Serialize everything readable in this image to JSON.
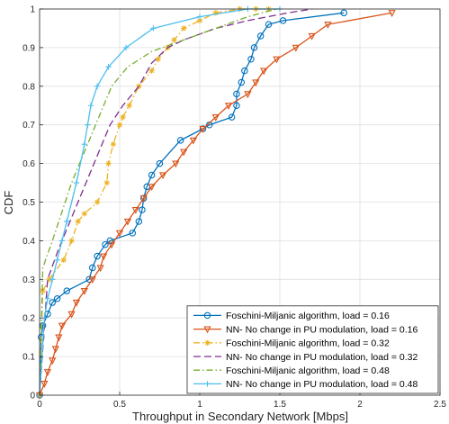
{
  "chart_data": {
    "type": "line",
    "xlabel": "Throughput in Secondary Network [Mbps]",
    "ylabel": "CDF",
    "xlim": [
      0,
      2.5
    ],
    "ylim": [
      0,
      1
    ],
    "xticks": [
      "0",
      "0.5",
      "1",
      "1.5",
      "2",
      "2.5"
    ],
    "yticks": [
      "0",
      "0.1",
      "0.2",
      "0.3",
      "0.4",
      "0.5",
      "0.6",
      "0.7",
      "0.8",
      "0.9",
      "1"
    ],
    "grid": true,
    "legend_position": "bottom-right",
    "series": [
      {
        "name": "Foschini-Miljanic algorithm, load = 0.16",
        "color": "#0072BD",
        "dash": "solid",
        "marker": "circle",
        "x": [
          0.0,
          0.01,
          0.02,
          0.05,
          0.08,
          0.11,
          0.17,
          0.31,
          0.33,
          0.36,
          0.41,
          0.44,
          0.58,
          0.62,
          0.64,
          0.65,
          0.67,
          0.7,
          0.75,
          0.88,
          1.02,
          1.06,
          1.2,
          1.23,
          1.23,
          1.26,
          1.28,
          1.32,
          1.34,
          1.38,
          1.43,
          1.52,
          1.9
        ],
        "y": [
          0.0,
          0.15,
          0.18,
          0.21,
          0.24,
          0.25,
          0.27,
          0.3,
          0.33,
          0.36,
          0.39,
          0.4,
          0.42,
          0.45,
          0.48,
          0.51,
          0.54,
          0.57,
          0.6,
          0.66,
          0.69,
          0.7,
          0.72,
          0.75,
          0.78,
          0.81,
          0.84,
          0.87,
          0.9,
          0.93,
          0.96,
          0.97,
          0.99
        ]
      },
      {
        "name": "NN- No change in PU modulation, load = 0.16",
        "color": "#D95319",
        "dash": "solid",
        "marker": "triangle-down",
        "x": [
          0.0,
          0.03,
          0.05,
          0.08,
          0.1,
          0.12,
          0.14,
          0.2,
          0.23,
          0.28,
          0.33,
          0.38,
          0.4,
          0.45,
          0.5,
          0.55,
          0.6,
          0.65,
          0.7,
          0.77,
          0.85,
          0.9,
          0.96,
          1.02,
          1.1,
          1.18,
          1.3,
          1.35,
          1.4,
          1.48,
          1.6,
          1.7,
          1.8,
          2.2
        ],
        "y": [
          0.0,
          0.03,
          0.06,
          0.09,
          0.12,
          0.15,
          0.18,
          0.21,
          0.24,
          0.27,
          0.3,
          0.33,
          0.36,
          0.39,
          0.42,
          0.45,
          0.48,
          0.51,
          0.54,
          0.57,
          0.6,
          0.63,
          0.66,
          0.69,
          0.72,
          0.75,
          0.78,
          0.81,
          0.84,
          0.87,
          0.9,
          0.93,
          0.96,
          0.99
        ]
      },
      {
        "name": "Foschini-Miljanic algorithm, load = 0.32",
        "color": "#EDB120",
        "dash": "dashdot",
        "marker": "asterisk",
        "x": [
          0.0,
          0.02,
          0.06,
          0.15,
          0.2,
          0.24,
          0.28,
          0.36,
          0.42,
          0.43,
          0.46,
          0.5,
          0.52,
          0.56,
          0.62,
          0.7,
          0.74,
          0.8,
          0.84,
          0.9,
          1.0,
          1.1,
          1.25,
          1.35,
          1.43
        ],
        "y": [
          0.0,
          0.27,
          0.3,
          0.35,
          0.4,
          0.45,
          0.47,
          0.5,
          0.55,
          0.6,
          0.65,
          0.7,
          0.72,
          0.75,
          0.8,
          0.84,
          0.87,
          0.9,
          0.92,
          0.95,
          0.97,
          0.99,
          1.0,
          1.0,
          1.0
        ]
      },
      {
        "name": "NN- No change in PU modulation, load = 0.32",
        "color": "#7E2F8E",
        "dash": "dashed",
        "marker": "none",
        "x": [
          0.0,
          0.05,
          0.12,
          0.18,
          0.24,
          0.28,
          0.32,
          0.36,
          0.4,
          0.44,
          0.52,
          0.62,
          0.7,
          0.8,
          0.9,
          1.1,
          1.3,
          1.55,
          1.7
        ],
        "y": [
          0.0,
          0.3,
          0.38,
          0.44,
          0.5,
          0.54,
          0.58,
          0.62,
          0.66,
          0.7,
          0.75,
          0.8,
          0.86,
          0.9,
          0.92,
          0.95,
          0.97,
          0.99,
          1.0
        ]
      },
      {
        "name": "Foschini-Miljanic algorithm, load = 0.48",
        "color": "#77AC30",
        "dash": "dashdot",
        "marker": "none",
        "x": [
          0.0,
          0.02,
          0.08,
          0.12,
          0.16,
          0.2,
          0.25,
          0.3,
          0.35,
          0.4,
          0.45,
          0.55,
          0.7,
          0.9,
          1.1,
          1.3,
          1.48
        ],
        "y": [
          0.0,
          0.33,
          0.4,
          0.45,
          0.5,
          0.55,
          0.6,
          0.65,
          0.7,
          0.75,
          0.8,
          0.85,
          0.89,
          0.92,
          0.95,
          0.98,
          1.0
        ]
      },
      {
        "name": "NN- No change in PU modulation, load = 0.48",
        "color": "#4DBEEE",
        "dash": "solid",
        "marker": "plus",
        "x": [
          0.0,
          0.03,
          0.05,
          0.08,
          0.11,
          0.14,
          0.17,
          0.23,
          0.28,
          0.3,
          0.32,
          0.36,
          0.43,
          0.54,
          0.71,
          1.0,
          1.3,
          1.5
        ],
        "y": [
          0.0,
          0.2,
          0.25,
          0.3,
          0.35,
          0.4,
          0.45,
          0.55,
          0.65,
          0.7,
          0.75,
          0.8,
          0.85,
          0.9,
          0.95,
          0.98,
          1.0,
          1.0
        ]
      }
    ]
  }
}
